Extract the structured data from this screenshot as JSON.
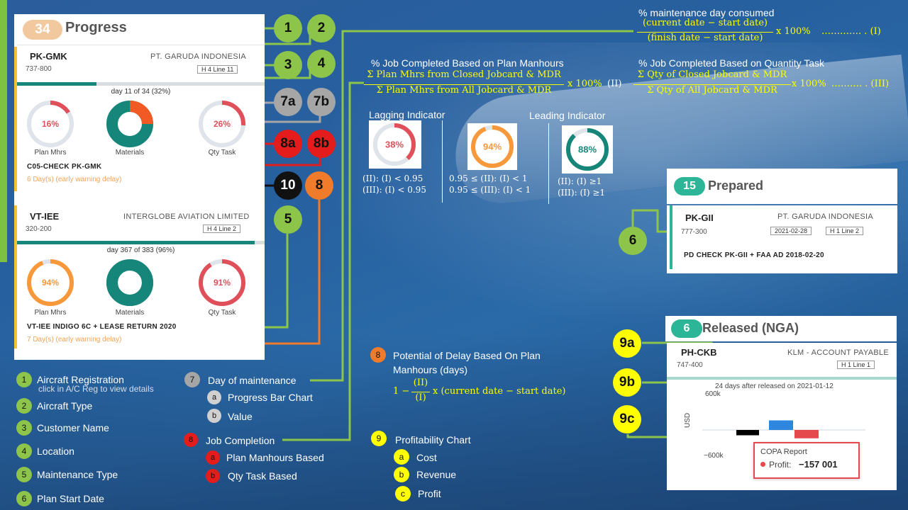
{
  "progress": {
    "count": "34",
    "title": "Progress",
    "cards": [
      {
        "registration": "PK-GMK",
        "type": "737-800",
        "customer": "PT. GARUDA INDONESIA",
        "location": "H 4 Line 11",
        "day_text": "day 11 of 34 (32%)",
        "day_fraction": 0.32,
        "gauges": [
          {
            "label": "Plan Mhrs",
            "value": "16%",
            "pct": 16,
            "color": "#e0505a"
          },
          {
            "label": "Materials",
            "value": "",
            "pct": 25,
            "color": "#f15a24"
          },
          {
            "label": "Qty Task",
            "value": "26%",
            "pct": 26,
            "color": "#e0505a"
          }
        ],
        "task": "C05-CHECK PK-GMK",
        "delay": "6 Day(s) (early warning delay)"
      },
      {
        "registration": "VT-IEE",
        "type": "320-200",
        "customer": "INTERGLOBE AVIATION LIMITED",
        "location": "H 4 Line 2",
        "day_text": "day 367 of 383 (96%)",
        "day_fraction": 0.96,
        "gauges": [
          {
            "label": "Plan Mhrs",
            "value": "94%",
            "pct": 94,
            "color": "#f7993a"
          },
          {
            "label": "Materials",
            "value": "",
            "pct": 95,
            "color": "#17867a"
          },
          {
            "label": "Qty Task",
            "value": "91%",
            "pct": 91,
            "color": "#e0505a"
          }
        ],
        "task": "VT-IEE INDIGO 6C + LEASE RETURN 2020",
        "delay": "7 Day(s) (early warning delay)"
      }
    ]
  },
  "markers": {
    "m1": "1",
    "m2": "2",
    "m3": "3",
    "m4": "4",
    "m5": "5",
    "m6": "6",
    "m7a": "7a",
    "m7b": "7b",
    "m8a": "8a",
    "m8b": "8b",
    "m10": "10",
    "m8": "8",
    "m9a": "9a",
    "m9b": "9b",
    "m9c": "9c"
  },
  "legend": {
    "items": [
      {
        "num": "1",
        "label": "Aircraft Registration",
        "sub": "click in A/C Reg to view details"
      },
      {
        "num": "2",
        "label": "Aircraft Type"
      },
      {
        "num": "3",
        "label": "Customer Name"
      },
      {
        "num": "4",
        "label": "Location"
      },
      {
        "num": "5",
        "label": "Maintenance Type"
      },
      {
        "num": "6",
        "label": "Plan Start Date"
      }
    ],
    "day": {
      "num": "7",
      "label": "Day of maintenance",
      "a_num": "a",
      "a": "Progress Bar Chart",
      "b_num": "b",
      "b": "Value"
    },
    "job": {
      "num": "8",
      "label": "Job Completion",
      "a_num": "a",
      "a": "Plan Manhours Based",
      "b_num": "b",
      "b": "Qty Task Based"
    },
    "delay": {
      "num": "8",
      "label_1": "Potential of Delay Based On Plan",
      "label_2": "Manhours (days)",
      "formula_prefix": "1 −",
      "num_frac": "(II)",
      "den_frac": "(I)",
      "formula_suffix": "x (current date − start date)"
    },
    "profit": {
      "num": "9",
      "label": "Profitability Chart",
      "a_num": "a",
      "a": "Cost",
      "b_num": "b",
      "b": "Revenue",
      "c_num": "c",
      "c": "Profit"
    }
  },
  "formulas": {
    "f1": {
      "title": "% maintenance day consumed",
      "num": "(current date − start date)",
      "den": "(finish date − start date)",
      "suffix": "x 100%",
      "tag": "…………. . (I)"
    },
    "f2": {
      "title": "% Job Completed Based on Plan Manhours",
      "num": "Σ Plan Mhrs from Closed Jobcard & MDR",
      "den": "Σ Plan Mhrs from All Jobcard & MDR",
      "suffix": "x 100%",
      "tag": "(II)"
    },
    "f3": {
      "title": "% Job Completed Based on Quantity Task",
      "num": "Σ Qty of Closed Jobcard & MDR",
      "den": "Σ Qty of All Jobcard & MDR",
      "suffix": "x 100%",
      "tag": "………. . (III)"
    }
  },
  "indicators": {
    "lagging": "Lagging Indicator",
    "leading": "Leading Indicator",
    "gauges": [
      {
        "value": "38%",
        "pct": 38,
        "color": "#e0505a"
      },
      {
        "value": "94%",
        "pct": 94,
        "color": "#f7993a"
      },
      {
        "value": "88%",
        "pct": 88,
        "color": "#17867a"
      }
    ],
    "conds": [
      [
        "(II): (I)   < 0.95",
        "(III): (I) < 0.95"
      ],
      [
        "0.95 ≤ (II): (I)  < 1",
        "0.95 ≤ (III): (I)  < 1"
      ],
      [
        "(II): (I)   ≥1",
        "(III): (I)  ≥1"
      ]
    ]
  },
  "prepared": {
    "count": "15",
    "title": "Prepared",
    "registration": "PK-GII",
    "customer": "PT. GARUDA INDONESIA",
    "type": "777-300",
    "date": "2021-02-28",
    "location": "H 1 Line 2",
    "task": "PD CHECK PK-GII + FAA AD 2018-02-20"
  },
  "released": {
    "count": "6",
    "title": "Released (NGA)",
    "registration": "PH-CKB",
    "customer": "KLM - ACCOUNT PAYABLE",
    "type": "747-400",
    "location": "H 1 Line 1",
    "status": "24 days after released on 2021-01-12",
    "ytick_top": "600k",
    "ytick_bottom": "−600k",
    "ylabel": "USD",
    "tooltip_title": "COPA Report",
    "tooltip_label": "Profit:",
    "tooltip_value": "−157 001"
  },
  "chart_data": {
    "type": "bar",
    "categories": [
      "Cost",
      "Revenue",
      "Profit"
    ],
    "values": [
      -100000,
      180000,
      -157001
    ],
    "colors": [
      "#000000",
      "#2e86de",
      "#e5484d"
    ],
    "ylabel": "USD",
    "ylim": [
      -600000,
      600000
    ]
  }
}
